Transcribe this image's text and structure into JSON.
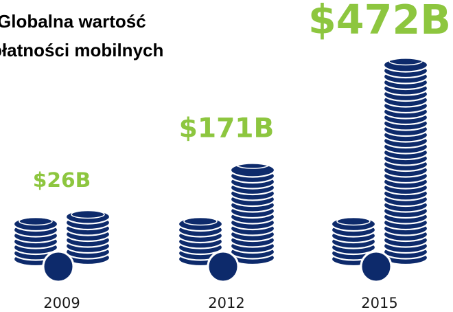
{
  "chart_data": {
    "type": "coin-stack",
    "title_lines": [
      "Globalna wartość",
      "płatności mobilnych"
    ],
    "categories": [
      "2009",
      "2012",
      "2015"
    ],
    "values": [
      26,
      171,
      472
    ],
    "value_labels": [
      "$26B",
      "$171B",
      "$472B"
    ],
    "color": "#0d2a6b",
    "label_color": "#8dc63f"
  }
}
